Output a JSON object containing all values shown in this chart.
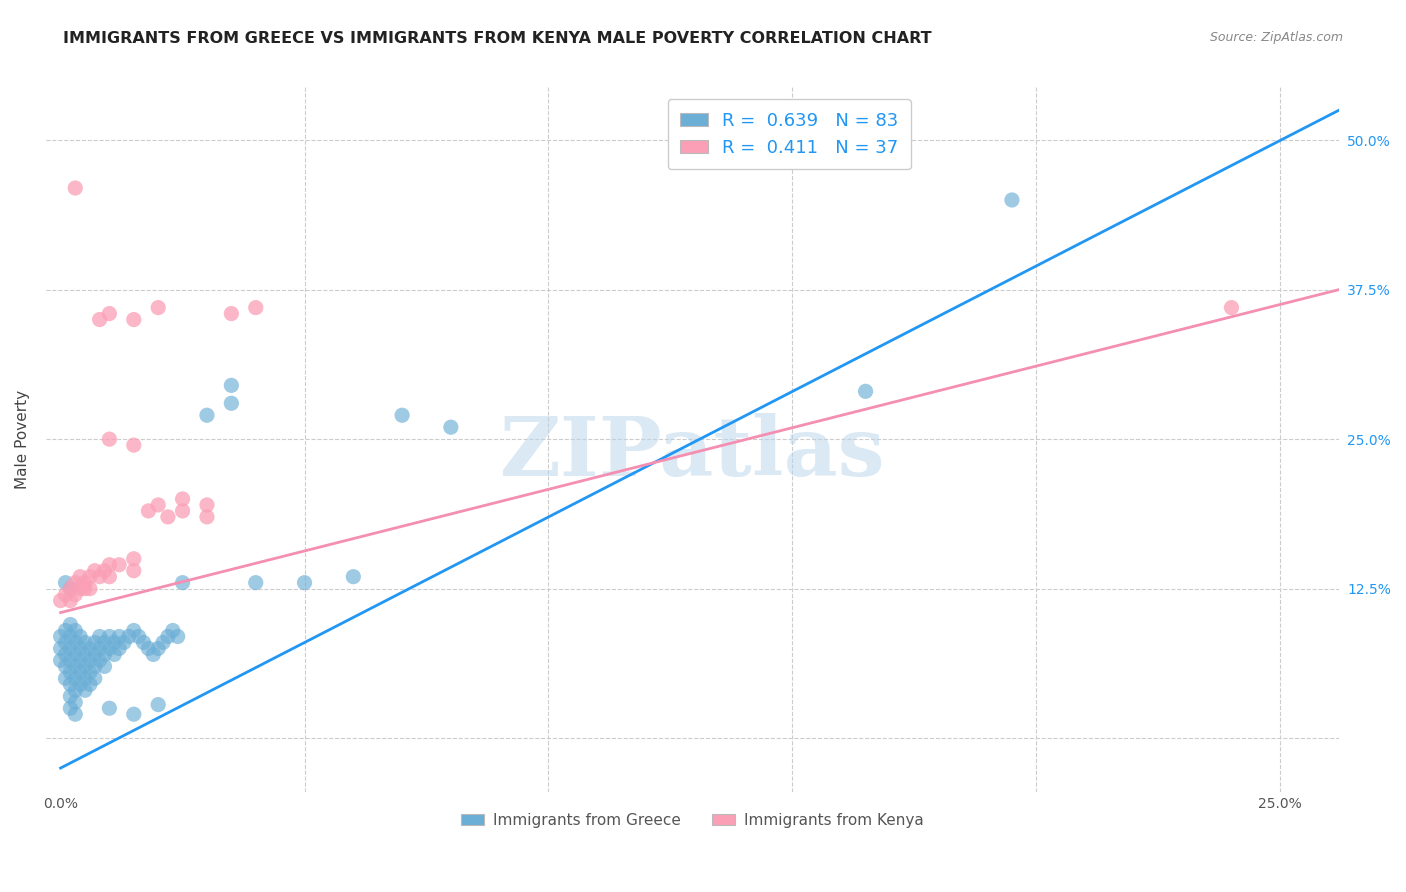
{
  "title": "IMMIGRANTS FROM GREECE VS IMMIGRANTS FROM KENYA MALE POVERTY CORRELATION CHART",
  "source": "Source: ZipAtlas.com",
  "ylabel": "Male Poverty",
  "x_ticks": [
    0.0,
    0.05,
    0.1,
    0.15,
    0.2,
    0.25
  ],
  "x_tick_labels": [
    "0.0%",
    "",
    "",
    "",
    "",
    "25.0%"
  ],
  "y_ticks": [
    0.0,
    0.125,
    0.25,
    0.375,
    0.5
  ],
  "y_tick_labels": [
    "",
    "12.5%",
    "25.0%",
    "37.5%",
    "50.0%"
  ],
  "xlim": [
    -0.003,
    0.262
  ],
  "ylim": [
    -0.045,
    0.545
  ],
  "greece_color": "#6baed6",
  "kenya_color": "#fa9fb5",
  "greece_R": 0.639,
  "greece_N": 83,
  "kenya_R": 0.411,
  "kenya_N": 37,
  "legend_label_greece": "Immigrants from Greece",
  "legend_label_kenya": "Immigrants from Kenya",
  "watermark": "ZIPatlas",
  "greece_scatter": [
    [
      0.0,
      0.085
    ],
    [
      0.0,
      0.075
    ],
    [
      0.0,
      0.065
    ],
    [
      0.001,
      0.09
    ],
    [
      0.001,
      0.08
    ],
    [
      0.001,
      0.07
    ],
    [
      0.001,
      0.06
    ],
    [
      0.001,
      0.05
    ],
    [
      0.002,
      0.095
    ],
    [
      0.002,
      0.085
    ],
    [
      0.002,
      0.075
    ],
    [
      0.002,
      0.065
    ],
    [
      0.002,
      0.055
    ],
    [
      0.002,
      0.045
    ],
    [
      0.002,
      0.035
    ],
    [
      0.002,
      0.025
    ],
    [
      0.003,
      0.09
    ],
    [
      0.003,
      0.08
    ],
    [
      0.003,
      0.07
    ],
    [
      0.003,
      0.06
    ],
    [
      0.003,
      0.05
    ],
    [
      0.003,
      0.04
    ],
    [
      0.003,
      0.03
    ],
    [
      0.003,
      0.02
    ],
    [
      0.004,
      0.085
    ],
    [
      0.004,
      0.075
    ],
    [
      0.004,
      0.065
    ],
    [
      0.004,
      0.055
    ],
    [
      0.004,
      0.045
    ],
    [
      0.005,
      0.08
    ],
    [
      0.005,
      0.07
    ],
    [
      0.005,
      0.06
    ],
    [
      0.005,
      0.05
    ],
    [
      0.005,
      0.04
    ],
    [
      0.006,
      0.075
    ],
    [
      0.006,
      0.065
    ],
    [
      0.006,
      0.055
    ],
    [
      0.006,
      0.045
    ],
    [
      0.007,
      0.08
    ],
    [
      0.007,
      0.07
    ],
    [
      0.007,
      0.06
    ],
    [
      0.007,
      0.05
    ],
    [
      0.008,
      0.085
    ],
    [
      0.008,
      0.075
    ],
    [
      0.008,
      0.065
    ],
    [
      0.009,
      0.08
    ],
    [
      0.009,
      0.07
    ],
    [
      0.009,
      0.06
    ],
    [
      0.01,
      0.085
    ],
    [
      0.01,
      0.075
    ],
    [
      0.011,
      0.08
    ],
    [
      0.011,
      0.07
    ],
    [
      0.012,
      0.085
    ],
    [
      0.012,
      0.075
    ],
    [
      0.013,
      0.08
    ],
    [
      0.014,
      0.085
    ],
    [
      0.015,
      0.09
    ],
    [
      0.016,
      0.085
    ],
    [
      0.017,
      0.08
    ],
    [
      0.018,
      0.075
    ],
    [
      0.019,
      0.07
    ],
    [
      0.02,
      0.075
    ],
    [
      0.021,
      0.08
    ],
    [
      0.022,
      0.085
    ],
    [
      0.023,
      0.09
    ],
    [
      0.024,
      0.085
    ],
    [
      0.025,
      0.13
    ],
    [
      0.001,
      0.13
    ],
    [
      0.002,
      0.125
    ],
    [
      0.03,
      0.27
    ],
    [
      0.035,
      0.295
    ],
    [
      0.035,
      0.28
    ],
    [
      0.07,
      0.27
    ],
    [
      0.08,
      0.26
    ],
    [
      0.165,
      0.29
    ],
    [
      0.195,
      0.45
    ],
    [
      0.04,
      0.13
    ],
    [
      0.05,
      0.13
    ],
    [
      0.06,
      0.135
    ],
    [
      0.01,
      0.025
    ],
    [
      0.015,
      0.02
    ],
    [
      0.02,
      0.028
    ]
  ],
  "kenya_scatter": [
    [
      0.0,
      0.115
    ],
    [
      0.001,
      0.12
    ],
    [
      0.002,
      0.125
    ],
    [
      0.002,
      0.115
    ],
    [
      0.003,
      0.13
    ],
    [
      0.003,
      0.12
    ],
    [
      0.004,
      0.125
    ],
    [
      0.004,
      0.135
    ],
    [
      0.005,
      0.13
    ],
    [
      0.005,
      0.125
    ],
    [
      0.006,
      0.135
    ],
    [
      0.006,
      0.125
    ],
    [
      0.007,
      0.14
    ],
    [
      0.008,
      0.135
    ],
    [
      0.009,
      0.14
    ],
    [
      0.01,
      0.145
    ],
    [
      0.01,
      0.135
    ],
    [
      0.012,
      0.145
    ],
    [
      0.015,
      0.15
    ],
    [
      0.015,
      0.14
    ],
    [
      0.018,
      0.19
    ],
    [
      0.02,
      0.195
    ],
    [
      0.022,
      0.185
    ],
    [
      0.025,
      0.19
    ],
    [
      0.025,
      0.2
    ],
    [
      0.03,
      0.195
    ],
    [
      0.03,
      0.185
    ],
    [
      0.003,
      0.46
    ],
    [
      0.008,
      0.35
    ],
    [
      0.01,
      0.355
    ],
    [
      0.015,
      0.35
    ],
    [
      0.02,
      0.36
    ],
    [
      0.035,
      0.355
    ],
    [
      0.04,
      0.36
    ],
    [
      0.01,
      0.25
    ],
    [
      0.015,
      0.245
    ],
    [
      0.24,
      0.36
    ]
  ],
  "greece_line_x": [
    0.0,
    0.262
  ],
  "greece_line_y": [
    -0.025,
    0.525
  ],
  "kenya_line_x": [
    0.0,
    0.262
  ],
  "kenya_line_y": [
    0.105,
    0.375
  ]
}
